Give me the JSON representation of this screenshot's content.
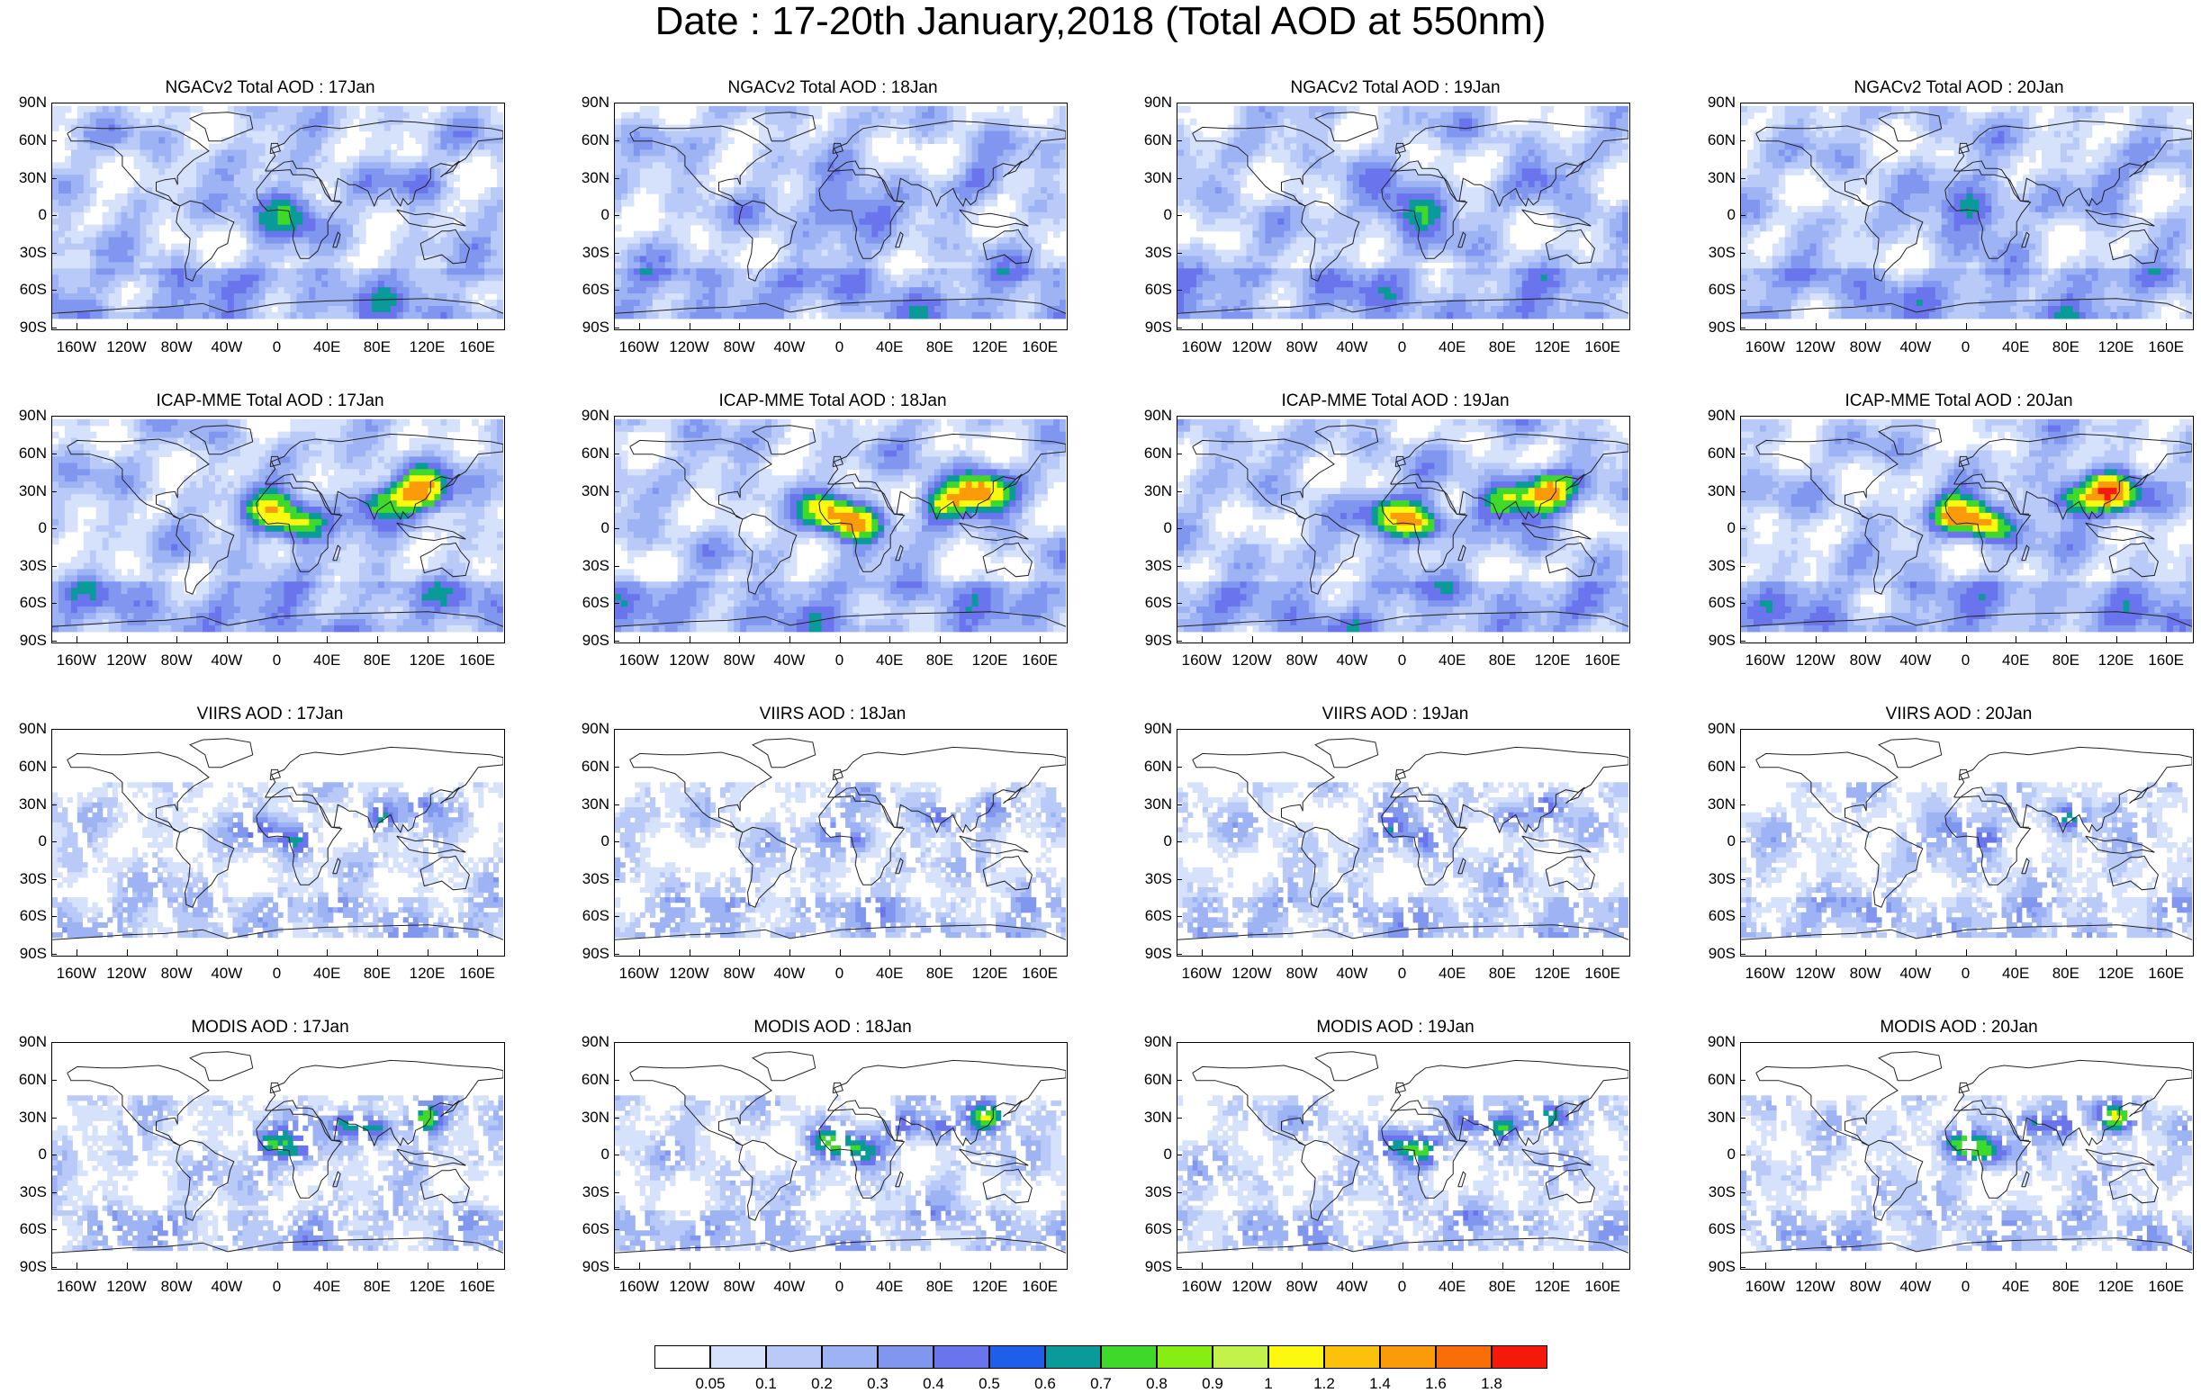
{
  "title": "Date : 17-20th January,2018 (Total AOD at 550nm)",
  "y_labels": [
    "90N",
    "60N",
    "30N",
    "0",
    "30S",
    "60S",
    "90S"
  ],
  "x_labels": [
    "160W",
    "120W",
    "80W",
    "40W",
    "0",
    "40E",
    "80E",
    "120E",
    "160E"
  ],
  "rows": [
    {
      "product": "NGACv2",
      "style": "model",
      "titles": [
        "NGACv2 Total AOD : 17Jan",
        "NGACv2 Total AOD : 18Jan",
        "NGACv2 Total AOD : 19Jan",
        "NGACv2 Total AOD : 20Jan"
      ]
    },
    {
      "product": "ICAP-MME",
      "style": "model-high",
      "titles": [
        "ICAP-MME Total AOD : 17Jan",
        "ICAP-MME Total AOD : 18Jan",
        "ICAP-MME Total AOD : 19Jan",
        "ICAP-MME Total AOD : 20Jan"
      ]
    },
    {
      "product": "VIIRS",
      "style": "satellite",
      "titles": [
        "VIIRS AOD : 17Jan",
        "VIIRS AOD : 18Jan",
        "VIIRS AOD : 19Jan",
        "VIIRS AOD : 20Jan"
      ]
    },
    {
      "product": "MODIS",
      "style": "satellite-high",
      "titles": [
        "MODIS AOD : 17Jan",
        "MODIS AOD : 18Jan",
        "MODIS AOD : 19Jan",
        "MODIS AOD : 20Jan"
      ]
    }
  ],
  "colorbar": {
    "labels": [
      "0.05",
      "0.1",
      "0.2",
      "0.3",
      "0.4",
      "0.5",
      "0.6",
      "0.7",
      "0.8",
      "0.9",
      "1",
      "1.2",
      "1.4",
      "1.6",
      "1.8"
    ],
    "colors": [
      "#ffffff",
      "#d6e1fb",
      "#b9caf8",
      "#9db3f4",
      "#8096ef",
      "#6a74ec",
      "#1e5ee8",
      "#0b9a9a",
      "#3fd92c",
      "#86ee12",
      "#c3f24a",
      "#fcf90f",
      "#fbc10b",
      "#fb9b09",
      "#f96e09",
      "#f5190c"
    ]
  }
}
